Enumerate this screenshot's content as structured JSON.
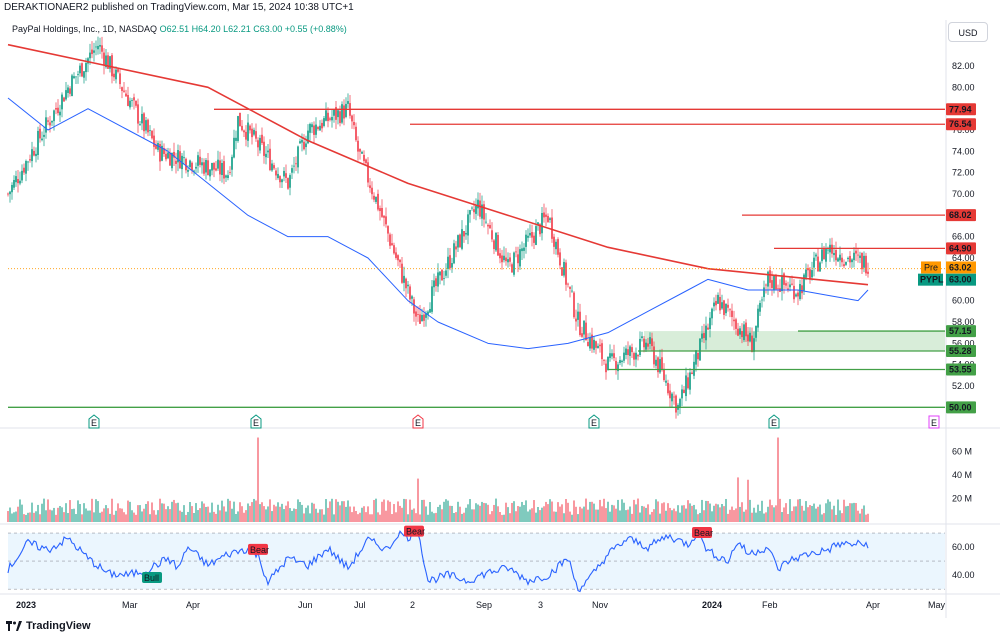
{
  "header": {
    "published": "DERAKTIONAER2 published on TradingView.com, Mar 15, 2024 10:38 UTC+1",
    "legend_name": "PayPal Holdings, Inc., 1D, NASDAQ",
    "o": "O62.51",
    "h": "H64.20",
    "l": "L62.21",
    "c": "C63.00",
    "chg": "+0.55 (+0.88%)",
    "currency": "USD"
  },
  "footer": {
    "brand": "TradingView",
    "logo": "tradingview-logo-icon"
  },
  "colors": {
    "up": "#089981",
    "down": "#f23645",
    "ma200": "#e53935",
    "ma50": "#2962ff",
    "rsi": "#2962ff",
    "support": "#43a047",
    "resistance": "#e53935",
    "zone": "#c8e6c9"
  },
  "chart_data": {
    "type": "candlestick",
    "price": {
      "ylim": [
        49,
        85
      ],
      "ticks": [
        52,
        54,
        56,
        58,
        60,
        62,
        64,
        66,
        68,
        70,
        72,
        74,
        76,
        78,
        80,
        82
      ],
      "tick_labels": [
        "52.00",
        "54.00",
        "56.00",
        "58.00",
        "60.00",
        "62.00",
        "64.00",
        "66.00",
        "68.00",
        "70.00",
        "72.00",
        "74.00",
        "76.00",
        "78.00",
        "80.00",
        "82.00"
      ],
      "keyframes_x": [
        0,
        30,
        45,
        75,
        110,
        115,
        140,
        150,
        170,
        175,
        185,
        205,
        235,
        250,
        270,
        285,
        300,
        320,
        335,
        355,
        372,
        380,
        395,
        410,
        420,
        430
      ],
      "keyframes_y": [
        70,
        80,
        84,
        74,
        72,
        77,
        71,
        76,
        78,
        74,
        69,
        58,
        69,
        63,
        68,
        58,
        54,
        56,
        50,
        60,
        56,
        62,
        61,
        65,
        64,
        63.5
      ],
      "ma200": {
        "x": [
          0,
          50,
          100,
          150,
          200,
          250,
          300,
          350,
          430
        ],
        "y": [
          84,
          82,
          80,
          75,
          71,
          68,
          65,
          63,
          61.5
        ]
      },
      "ma50": {
        "x": [
          0,
          20,
          40,
          60,
          80,
          100,
          120,
          140,
          160,
          180,
          190,
          200,
          215,
          240,
          260,
          280,
          300,
          320,
          340,
          350,
          370,
          380,
          395,
          410,
          425,
          430
        ],
        "y": [
          79,
          76,
          78,
          76,
          74,
          71,
          68,
          66,
          66,
          64,
          62,
          60,
          58,
          56,
          55.5,
          56,
          57,
          59,
          61,
          62,
          61,
          61,
          61,
          60.5,
          60,
          61
        ]
      },
      "levels": [
        {
          "value": 77.94,
          "label": "77.94",
          "color": "#e53935",
          "x_start": 103
        },
        {
          "value": 76.54,
          "label": "76.54",
          "color": "#e53935",
          "x_start": 201
        },
        {
          "value": 68.02,
          "label": "68.02",
          "color": "#e53935",
          "x_start": 367
        },
        {
          "value": 64.9,
          "label": "64.90",
          "color": "#e53935",
          "x_start": 383
        },
        {
          "value": 57.15,
          "label": "57.15",
          "color": "#43a047",
          "x_start": 395
        },
        {
          "value": 55.28,
          "label": "55.28",
          "color": "#43a047",
          "x_start": 315
        },
        {
          "value": 53.55,
          "label": "53.55",
          "color": "#43a047",
          "x_start": 300
        },
        {
          "value": 50.0,
          "label": "50.00",
          "color": "#43a047",
          "x_start": 0
        }
      ],
      "zone": {
        "from": 55.28,
        "to": 57.15,
        "x_start": 318
      },
      "pre_label": {
        "text": "Pre",
        "value": "63.02"
      },
      "last_label": {
        "text": "PYPL",
        "value": "63.00"
      },
      "earnings": [
        {
          "x": 43,
          "label": "E",
          "kind": "past-green"
        },
        {
          "x": 124,
          "label": "E",
          "kind": "past-green"
        },
        {
          "x": 205,
          "label": "E",
          "kind": "past-red"
        },
        {
          "x": 293,
          "label": "E",
          "kind": "past-green"
        },
        {
          "x": 383,
          "label": "E",
          "kind": "past-green"
        },
        {
          "x": 463,
          "label": "E",
          "kind": "future"
        }
      ]
    },
    "volume": {
      "ylim": [
        0,
        75
      ],
      "ticks": [
        20,
        40,
        60
      ],
      "tick_labels": [
        "20 M",
        "40 M",
        "60 M"
      ],
      "spikes": [
        {
          "x": 125,
          "v": 72
        },
        {
          "x": 205,
          "v": 37
        },
        {
          "x": 365,
          "v": 38
        },
        {
          "x": 370,
          "v": 36
        },
        {
          "x": 385,
          "v": 72
        }
      ]
    },
    "rsi": {
      "ylim": [
        28,
        75
      ],
      "band": [
        30,
        70
      ],
      "ticks": [
        40,
        60
      ],
      "tick_labels": [
        "40.00",
        "60.00"
      ],
      "series_x": [
        0,
        10,
        20,
        30,
        40,
        50,
        60,
        70,
        80,
        85,
        90,
        100,
        110,
        120,
        125,
        130,
        140,
        150,
        160,
        170,
        180,
        190,
        195,
        200,
        205,
        210,
        220,
        230,
        240,
        250,
        260,
        270,
        280,
        285,
        290,
        300,
        310,
        320,
        330,
        340,
        345,
        350,
        360,
        365,
        370,
        380,
        385,
        390,
        400,
        410,
        415
      ],
      "series_y": [
        44,
        63,
        58,
        66,
        52,
        41,
        40,
        44,
        52,
        45,
        60,
        47,
        55,
        59,
        54,
        35,
        52,
        47,
        59,
        45,
        65,
        58,
        70,
        67,
        72,
        36,
        40,
        36,
        42,
        45,
        36,
        40,
        52,
        30,
        36,
        55,
        66,
        60,
        68,
        62,
        71,
        57,
        50,
        64,
        55,
        60,
        44,
        50,
        55,
        58,
        62
      ],
      "labels": [
        {
          "x": 72,
          "y": 38,
          "text": "Bull",
          "kind": "bull"
        },
        {
          "x": 125,
          "y": 58,
          "text": "Bear",
          "kind": "bear"
        },
        {
          "x": 203,
          "y": 71,
          "text": "Bear",
          "kind": "bear"
        },
        {
          "x": 347,
          "y": 70,
          "text": "Bear",
          "kind": "bear"
        }
      ]
    },
    "x_axis": {
      "positions": [
        7,
        60,
        92,
        148,
        176,
        204,
        237,
        268,
        295,
        350,
        380,
        432,
        463
      ],
      "labels": [
        "2023",
        "Mar",
        "Apr",
        "Jun",
        "Jul",
        "2",
        "Sep",
        "3",
        "Nov",
        "2024",
        "Feb",
        "Apr",
        "May"
      ],
      "bold": [
        true,
        false,
        false,
        false,
        false,
        false,
        false,
        false,
        false,
        true,
        false,
        false,
        false
      ]
    }
  }
}
